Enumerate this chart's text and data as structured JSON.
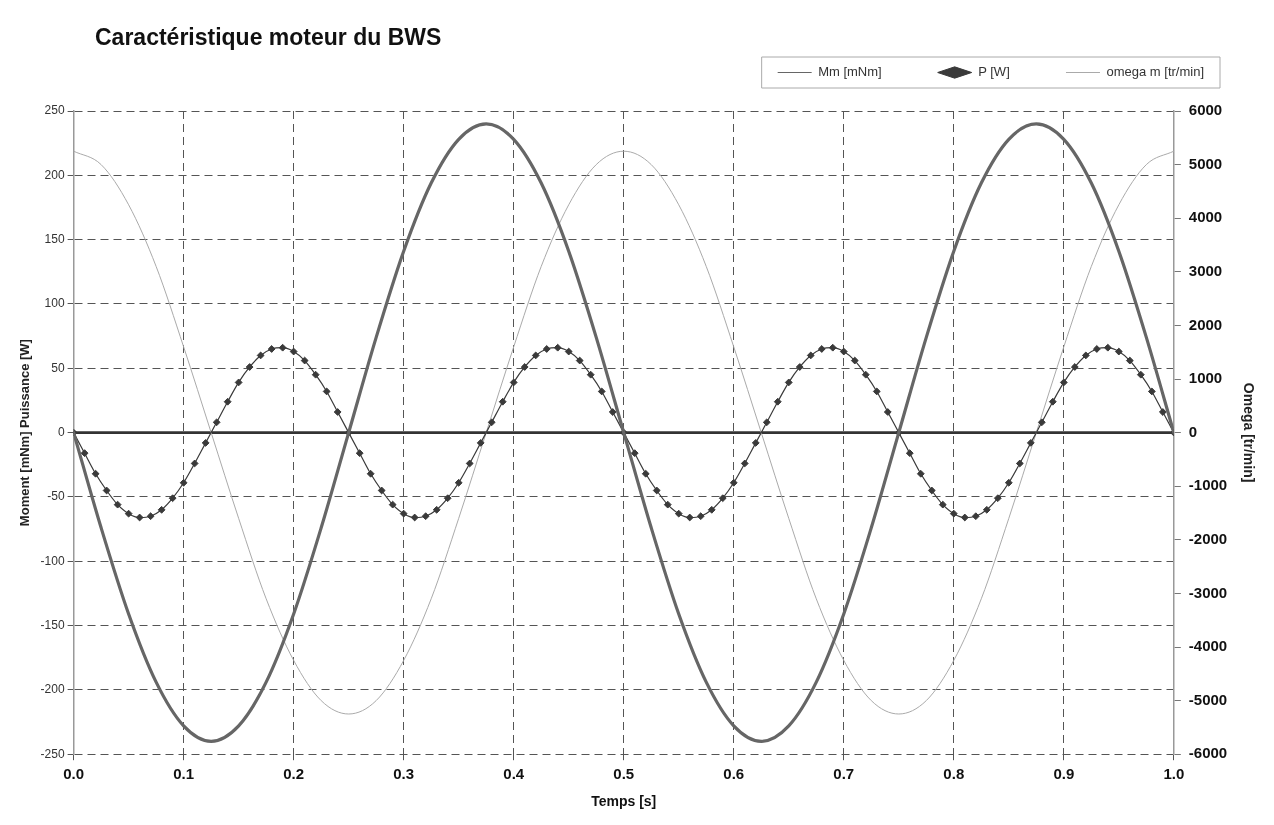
{
  "chart_data": {
    "type": "line",
    "title": "Caractéristique moteur du BWS",
    "xlabel": "Temps [s]",
    "ylabel": "Moment [mNm] Puissance [W]",
    "y2label": "Omega [tr/min]",
    "xlim": [
      0,
      1
    ],
    "xticks": [
      {
        "value": 0,
        "label": "0.0"
      },
      0.1,
      0.2,
      0.3,
      0.4,
      0.5,
      0.6,
      0.7,
      0.8,
      0.9,
      {
        "value": 1,
        "label": "1.0"
      }
    ],
    "ylim": [
      -250,
      250
    ],
    "yticks": [
      -250,
      -200,
      -150,
      -100,
      -50,
      0,
      50,
      100,
      150,
      200,
      250
    ],
    "y2lim": [
      -6000,
      6000
    ],
    "y2ticks": [
      -6000,
      -5000,
      -4000,
      -3000,
      -2000,
      -1000,
      0,
      1000,
      2000,
      3000,
      4000,
      5000,
      6000
    ],
    "grid": true,
    "legend": "top right",
    "ref_lines": [
      {
        "axis": "y",
        "value": 0,
        "color": "#333333"
      }
    ],
    "series": [
      {
        "name": "Mm [mNm]",
        "color": "#666666",
        "x": [
          0,
          0.025,
          0.05,
          0.075,
          0.1,
          0.125,
          0.15,
          0.175,
          0.2,
          0.225,
          0.25,
          0.275,
          0.3,
          0.325,
          0.35,
          0.375,
          0.4,
          0.425,
          0.45,
          0.475,
          0.5,
          0.525,
          0.55,
          0.575,
          0.6,
          0.625,
          0.65,
          0.675,
          0.7,
          0.725,
          0.75,
          0.775,
          0.8,
          0.825,
          0.85,
          0.875,
          0.9,
          0.925,
          0.95,
          0.975,
          1
        ],
        "values": [
          0,
          -74,
          -141,
          -194,
          -228,
          -240,
          -228,
          -194,
          -141,
          -74,
          0,
          74,
          141,
          194,
          228,
          240,
          228,
          194,
          141,
          74,
          0,
          -74,
          -141,
          -194,
          -228,
          -240,
          -228,
          -194,
          -141,
          -74,
          0,
          74,
          141,
          194,
          228,
          240,
          228,
          194,
          141,
          74,
          0
        ]
      },
      {
        "name": "P [W]",
        "color": "#3a3a3a",
        "marker": "diamond",
        "x": [
          0,
          0.01,
          0.02,
          0.03,
          0.04,
          0.05,
          0.06,
          0.07,
          0.08,
          0.09,
          0.1,
          0.11,
          0.12,
          0.13,
          0.14,
          0.15,
          0.16,
          0.17,
          0.18,
          0.19,
          0.2,
          0.21,
          0.22,
          0.23,
          0.24,
          0.25,
          0.26,
          0.27,
          0.28,
          0.29,
          0.3,
          0.31,
          0.32,
          0.33,
          0.34,
          0.35,
          0.36,
          0.37,
          0.38,
          0.39,
          0.4,
          0.41,
          0.42,
          0.43,
          0.44,
          0.45,
          0.46,
          0.47,
          0.48,
          0.49,
          0.5,
          0.51,
          0.52,
          0.53,
          0.54,
          0.55,
          0.56,
          0.57,
          0.58,
          0.59,
          0.6,
          0.61,
          0.62,
          0.63,
          0.64,
          0.65,
          0.66,
          0.67,
          0.68,
          0.69,
          0.7,
          0.71,
          0.72,
          0.73,
          0.74,
          0.75,
          0.76,
          0.77,
          0.78,
          0.79,
          0.8,
          0.81,
          0.82,
          0.83,
          0.84,
          0.85,
          0.86,
          0.87,
          0.88,
          0.89,
          0.9,
          0.91,
          0.92,
          0.93,
          0.94,
          0.95,
          0.96,
          0.97,
          0.98,
          0.99,
          1
        ],
        "values": [
          0,
          -16,
          -32,
          -45,
          -56,
          -63,
          -66,
          -65,
          -60,
          -51,
          -39,
          -24,
          -8,
          8,
          24,
          39,
          51,
          60,
          65,
          66,
          63,
          56,
          45,
          32,
          16,
          0,
          -16,
          -32,
          -45,
          -56,
          -63,
          -66,
          -65,
          -60,
          -51,
          -39,
          -24,
          -8,
          8,
          24,
          39,
          51,
          60,
          65,
          66,
          63,
          56,
          45,
          32,
          16,
          0,
          -16,
          -32,
          -45,
          -56,
          -63,
          -66,
          -65,
          -60,
          -51,
          -39,
          -24,
          -8,
          8,
          24,
          39,
          51,
          60,
          65,
          66,
          63,
          56,
          45,
          32,
          16,
          0,
          -16,
          -32,
          -45,
          -56,
          -63,
          -66,
          -65,
          -60,
          -51,
          -39,
          -24,
          -8,
          8,
          24,
          39,
          51,
          60,
          65,
          66,
          63,
          56,
          45,
          32,
          16,
          0
        ]
      },
      {
        "name": "omega m [tr/min]",
        "color": "#aaaaaa",
        "axis": "y2",
        "x": [
          0,
          0.025,
          0.05,
          0.075,
          0.1,
          0.125,
          0.15,
          0.175,
          0.2,
          0.225,
          0.25,
          0.275,
          0.3,
          0.325,
          0.35,
          0.375,
          0.4,
          0.425,
          0.45,
          0.475,
          0.5,
          0.525,
          0.55,
          0.575,
          0.6,
          0.625,
          0.65,
          0.675,
          0.7,
          0.725,
          0.75,
          0.775,
          0.8,
          0.825,
          0.85,
          0.875,
          0.9,
          0.925,
          0.95,
          0.975,
          1
        ],
        "values": [
          5250,
          5000,
          4250,
          3100,
          1600,
          0,
          -1600,
          -3100,
          -4250,
          -5000,
          -5250,
          -5000,
          -4250,
          -3100,
          -1600,
          0,
          1600,
          3100,
          4250,
          5000,
          5250,
          5000,
          4250,
          3100,
          1600,
          0,
          -1600,
          -3100,
          -4250,
          -5000,
          -5250,
          -5000,
          -4250,
          -3100,
          -1600,
          0,
          1600,
          3100,
          4250,
          5000,
          5250
        ]
      }
    ]
  }
}
